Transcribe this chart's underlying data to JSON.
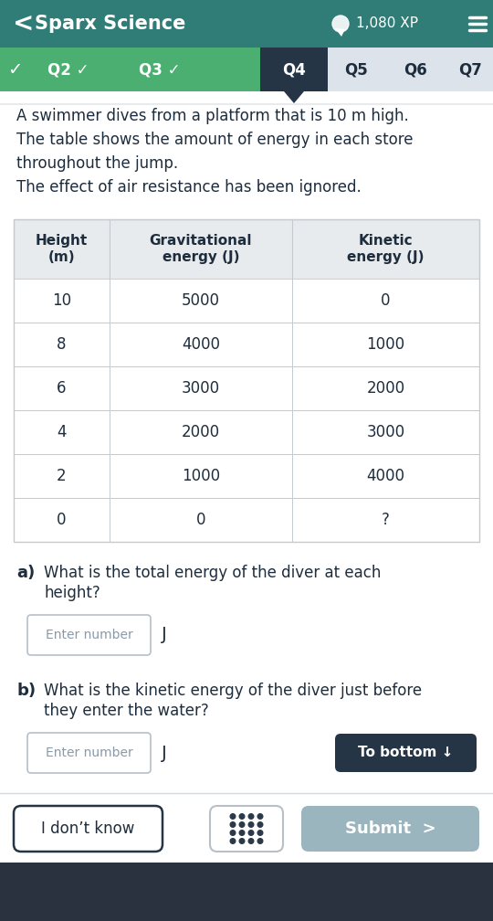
{
  "header_bg": "#307d78",
  "header_text": "Sparx Science",
  "header_xp": "1,080 XP",
  "nav_green_bg": "#4caf72",
  "nav_dark_bg": "#253545",
  "nav_light_bg": "#dce3ea",
  "table_header_bg": "#e8ebed",
  "table_border": "#c5cacf",
  "col_headers": [
    "Height\n(m)",
    "Gravitational\nenergy (J)",
    "Kinetic\nenergy (J)"
  ],
  "table_data": [
    [
      "10",
      "5000",
      "0"
    ],
    [
      "8",
      "4000",
      "1000"
    ],
    [
      "6",
      "3000",
      "2000"
    ],
    [
      "4",
      "2000",
      "3000"
    ],
    [
      "2",
      "1000",
      "4000"
    ],
    [
      "0",
      "0",
      "?"
    ]
  ],
  "intro_lines": [
    "A swimmer dives from a platform that is 10 m high.",
    "The table shows the amount of energy in each store",
    "throughout the jump.",
    "The effect of air resistance has been ignored."
  ],
  "input_border": "#b8bfc6",
  "input_placeholder": "Enter number",
  "btn_to_bottom_bg": "#253545",
  "btn_to_bottom_text": "To bottom ↓",
  "btn_idontknow_text": "I don’t know",
  "btn_submit_bg": "#9ab5be",
  "btn_submit_text": "Submit  >",
  "bottom_bg": "#2a3240",
  "text_dark": "#1e2d3d",
  "text_gray": "#8a9aa8"
}
